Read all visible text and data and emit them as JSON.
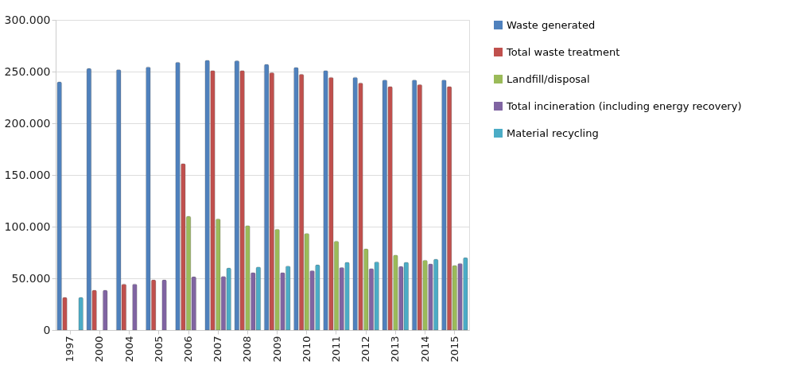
{
  "chart_data": {
    "type": "bar",
    "categories": [
      "1997",
      "2000",
      "2004",
      "2005",
      "2006",
      "2007",
      "2008",
      "2009",
      "2010",
      "2011",
      "2012",
      "2013",
      "2014",
      "2015"
    ],
    "series": [
      {
        "name": "Waste generated",
        "color": "#4f81bd",
        "values": [
          240000,
          253000,
          252000,
          254500,
          259000,
          261000,
          260500,
          257000,
          254000,
          251000,
          244500,
          242000,
          242000,
          242000
        ]
      },
      {
        "name": "Total waste treatment",
        "color": "#c0504d",
        "values": [
          31500,
          38500,
          44500,
          48500,
          161000,
          251000,
          251000,
          249000,
          247500,
          244500,
          239000,
          235500,
          237500,
          235500
        ]
      },
      {
        "name": "Landfill/disposal",
        "color": "#9bbb59",
        "values": [
          null,
          null,
          null,
          null,
          110000,
          107500,
          101000,
          97500,
          93500,
          86000,
          78500,
          72500,
          67500,
          62500
        ]
      },
      {
        "name": "Total incineration (including energy recovery)",
        "color": "#8064a2",
        "values": [
          null,
          38500,
          44500,
          48500,
          51500,
          52000,
          55500,
          55500,
          57500,
          60500,
          59500,
          61500,
          64000,
          64500
        ]
      },
      {
        "name": "Material recycling",
        "color": "#4bacc6",
        "values": [
          31500,
          null,
          null,
          null,
          null,
          60000,
          61000,
          62000,
          63000,
          65500,
          66000,
          65500,
          68500,
          70000
        ]
      }
    ],
    "ylim": [
      0,
      300000
    ],
    "yticks": [
      {
        "value": 0,
        "label": "0"
      },
      {
        "value": 50000,
        "label": "50.000"
      },
      {
        "value": 100000,
        "label": "100.000"
      },
      {
        "value": 150000,
        "label": "150.000"
      },
      {
        "value": 200000,
        "label": "200.000"
      },
      {
        "value": 250000,
        "label": "250.000"
      },
      {
        "value": 300000,
        "label": "300.000"
      }
    ],
    "grid": "y",
    "legend": "right"
  }
}
